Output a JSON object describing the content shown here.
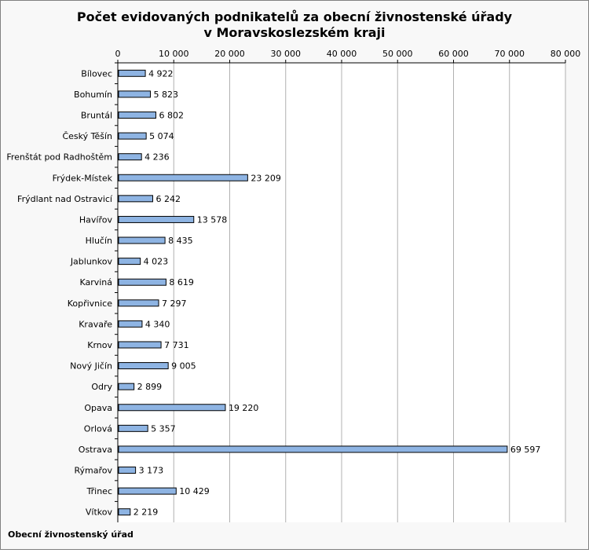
{
  "title_line1": "Počet evidovaných podnikatelů za obecní živnostenské úřady",
  "title_line2": "v Moravskoslezském kraji",
  "footer_label": "Obecní živnostenský úřad",
  "chart_data": {
    "type": "bar",
    "orientation": "horizontal",
    "title": "Počet evidovaných podnikatelů za obecní živnostenské úřady v Moravskoslezském kraji",
    "xlabel": "",
    "ylabel": "Obecní živnostenský úřad",
    "xlim": [
      0,
      80000
    ],
    "x_ticks": [
      "0",
      "10 000",
      "20 000",
      "30 000",
      "40 000",
      "50 000",
      "60 000",
      "70 000",
      "80 000"
    ],
    "grid": true,
    "bar_color": "#8eb4e3",
    "categories": [
      "Bílovec",
      "Bohumín",
      "Bruntál",
      "Český Těšín",
      "Frenštát pod Radhoštěm",
      "Frýdek-Místek",
      "Frýdlant nad Ostravicí",
      "Havířov",
      "Hlučín",
      "Jablunkov",
      "Karviná",
      "Kopřivnice",
      "Kravaře",
      "Krnov",
      "Nový Jičín",
      "Odry",
      "Opava",
      "Orlová",
      "Ostrava",
      "Rýmařov",
      "Třinec",
      "Vítkov"
    ],
    "values": [
      4922,
      5823,
      6802,
      5074,
      4236,
      23209,
      6242,
      13578,
      8435,
      4023,
      8619,
      7297,
      4340,
      7731,
      9005,
      2899,
      19220,
      5357,
      69597,
      3173,
      10429,
      2219
    ],
    "value_labels": [
      "4 922",
      "5 823",
      "6 802",
      "5 074",
      "4 236",
      "23 209",
      "6 242",
      "13 578",
      "8 435",
      "4 023",
      "8 619",
      "7 297",
      "4 340",
      "7 731",
      "9 005",
      "2 899",
      "19 220",
      "5 357",
      "69 597",
      "3 173",
      "10 429",
      "2 219"
    ]
  }
}
